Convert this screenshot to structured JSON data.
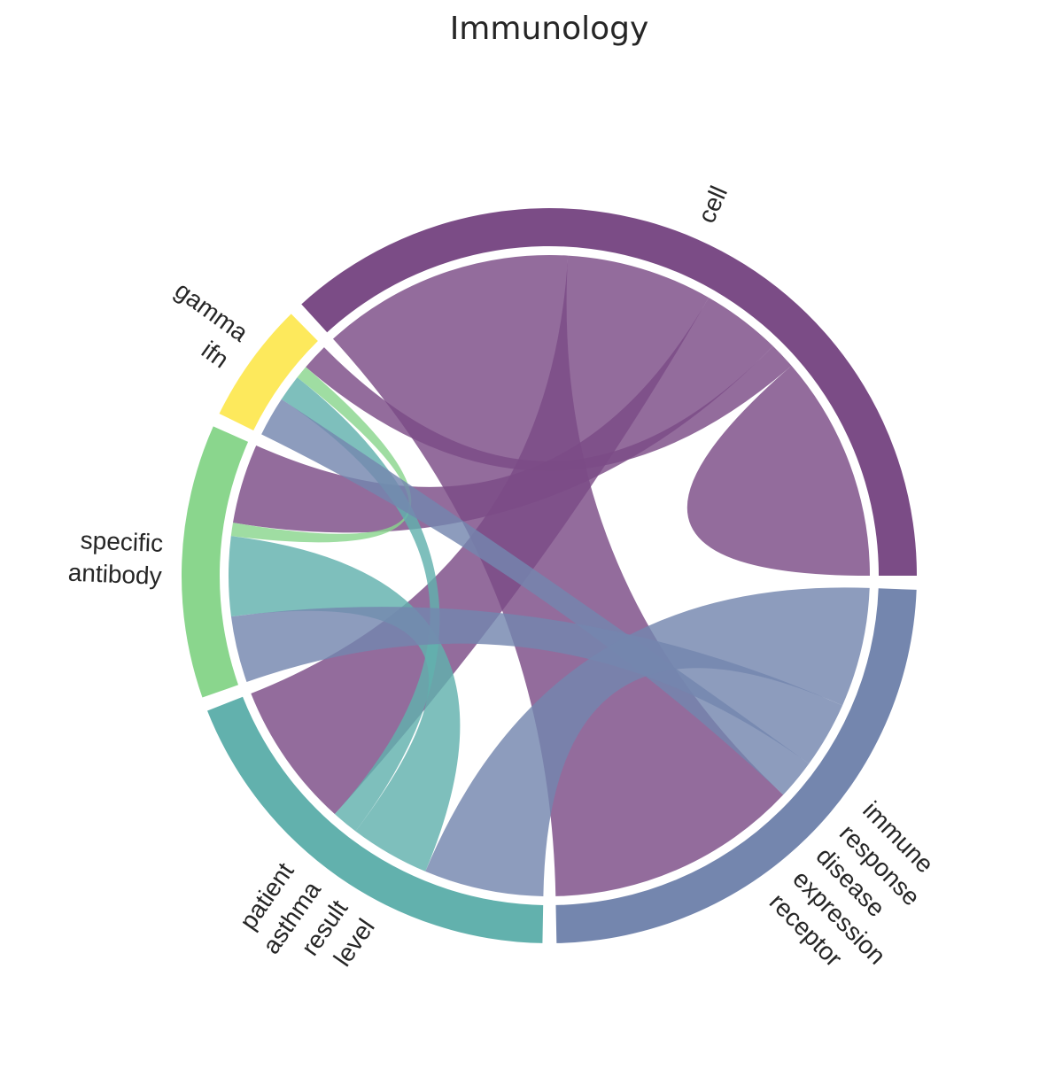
{
  "chart_data": {
    "type": "chord",
    "title": "Immunology",
    "groups": [
      {
        "id": "g0",
        "label_lines": [
          "cell"
        ],
        "color": "#7b4c86"
      },
      {
        "id": "g1",
        "label_lines": [
          "gamma",
          "ifn"
        ],
        "color": "#fde95c"
      },
      {
        "id": "g2",
        "label_lines": [
          "specific",
          "antibody"
        ],
        "color": "#8ad68d"
      },
      {
        "id": "g3",
        "label_lines": [
          "patient",
          "asthma",
          "result",
          "level"
        ],
        "color": "#62b1ad"
      },
      {
        "id": "g4",
        "label_lines": [
          "immune",
          "response",
          "disease",
          "expression",
          "receptor"
        ],
        "color": "#7486ae"
      }
    ],
    "matrix": [
      [
        17,
        2,
        6,
        11,
        19
      ],
      [
        2,
        0,
        1,
        2,
        3
      ],
      [
        6,
        1,
        0,
        6,
        5
      ],
      [
        11,
        2,
        6,
        0,
        9
      ],
      [
        19,
        3,
        5,
        9,
        0
      ]
    ]
  }
}
